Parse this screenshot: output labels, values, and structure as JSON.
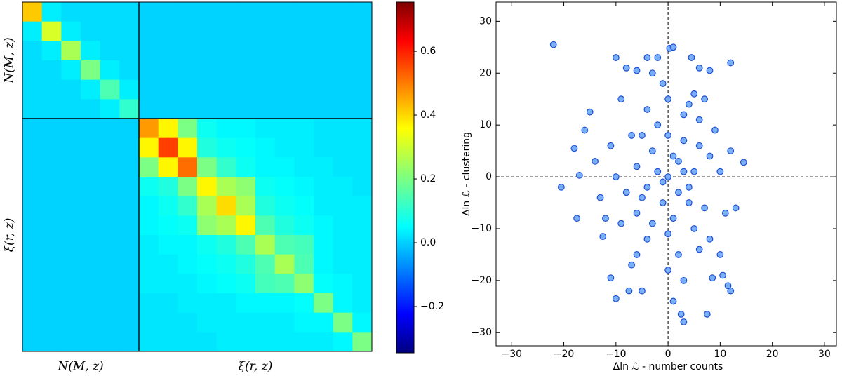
{
  "chart_data": [
    {
      "type": "heatmap",
      "colormap": "jet",
      "blocks": [
        {
          "label": "N(M, z)",
          "span": 6
        },
        {
          "label": "ξ(r, z)",
          "span": 12
        }
      ],
      "matrix": [
        [
          0.4,
          0.05,
          0.03,
          0.03,
          0.03,
          0.03,
          0.02,
          0.02,
          0.02,
          0.02,
          0.02,
          0.02,
          0.02,
          0.02,
          0.02,
          0.02,
          0.02,
          0.02
        ],
        [
          0.05,
          0.3,
          0.05,
          0.03,
          0.03,
          0.03,
          0.02,
          0.02,
          0.02,
          0.02,
          0.02,
          0.02,
          0.02,
          0.02,
          0.02,
          0.02,
          0.02,
          0.02
        ],
        [
          0.03,
          0.05,
          0.25,
          0.05,
          0.03,
          0.03,
          0.02,
          0.02,
          0.02,
          0.02,
          0.02,
          0.02,
          0.02,
          0.02,
          0.02,
          0.02,
          0.02,
          0.02
        ],
        [
          0.03,
          0.03,
          0.05,
          0.2,
          0.05,
          0.03,
          0.02,
          0.02,
          0.02,
          0.02,
          0.02,
          0.02,
          0.02,
          0.02,
          0.02,
          0.02,
          0.02,
          0.02
        ],
        [
          0.03,
          0.03,
          0.03,
          0.05,
          0.15,
          0.05,
          0.02,
          0.02,
          0.02,
          0.02,
          0.02,
          0.02,
          0.02,
          0.02,
          0.02,
          0.02,
          0.02,
          0.02
        ],
        [
          0.03,
          0.03,
          0.03,
          0.03,
          0.05,
          0.12,
          0.02,
          0.02,
          0.02,
          0.02,
          0.02,
          0.02,
          0.02,
          0.02,
          0.02,
          0.02,
          0.02,
          0.02
        ],
        [
          0.02,
          0.02,
          0.02,
          0.02,
          0.02,
          0.02,
          0.45,
          0.35,
          0.2,
          0.08,
          0.06,
          0.06,
          0.05,
          0.05,
          0.05,
          0.04,
          0.04,
          0.04
        ],
        [
          0.02,
          0.02,
          0.02,
          0.02,
          0.02,
          0.02,
          0.35,
          0.55,
          0.35,
          0.1,
          0.08,
          0.07,
          0.06,
          0.05,
          0.05,
          0.04,
          0.04,
          0.04
        ],
        [
          0.02,
          0.02,
          0.02,
          0.02,
          0.02,
          0.02,
          0.2,
          0.35,
          0.5,
          0.2,
          0.12,
          0.08,
          0.06,
          0.06,
          0.05,
          0.05,
          0.04,
          0.04
        ],
        [
          0.02,
          0.02,
          0.02,
          0.02,
          0.02,
          0.02,
          0.08,
          0.1,
          0.2,
          0.35,
          0.25,
          0.22,
          0.08,
          0.07,
          0.06,
          0.05,
          0.05,
          0.04
        ],
        [
          0.02,
          0.02,
          0.02,
          0.02,
          0.02,
          0.02,
          0.06,
          0.08,
          0.12,
          0.25,
          0.38,
          0.25,
          0.1,
          0.08,
          0.07,
          0.05,
          0.05,
          0.05
        ],
        [
          0.02,
          0.02,
          0.02,
          0.02,
          0.02,
          0.02,
          0.06,
          0.07,
          0.08,
          0.22,
          0.25,
          0.35,
          0.15,
          0.1,
          0.08,
          0.06,
          0.05,
          0.05
        ],
        [
          0.02,
          0.02,
          0.02,
          0.02,
          0.02,
          0.02,
          0.05,
          0.06,
          0.06,
          0.08,
          0.1,
          0.15,
          0.25,
          0.15,
          0.14,
          0.06,
          0.05,
          0.05
        ],
        [
          0.02,
          0.02,
          0.02,
          0.02,
          0.02,
          0.02,
          0.05,
          0.05,
          0.06,
          0.07,
          0.08,
          0.1,
          0.15,
          0.25,
          0.15,
          0.06,
          0.05,
          0.05
        ],
        [
          0.02,
          0.02,
          0.02,
          0.02,
          0.02,
          0.02,
          0.05,
          0.05,
          0.05,
          0.06,
          0.07,
          0.08,
          0.14,
          0.15,
          0.22,
          0.07,
          0.06,
          0.05
        ],
        [
          0.02,
          0.02,
          0.02,
          0.02,
          0.02,
          0.02,
          0.04,
          0.04,
          0.05,
          0.05,
          0.05,
          0.06,
          0.06,
          0.06,
          0.07,
          0.2,
          0.06,
          0.05
        ],
        [
          0.02,
          0.02,
          0.02,
          0.02,
          0.02,
          0.02,
          0.04,
          0.04,
          0.04,
          0.05,
          0.05,
          0.05,
          0.05,
          0.05,
          0.06,
          0.06,
          0.2,
          0.06
        ],
        [
          0.02,
          0.02,
          0.02,
          0.02,
          0.02,
          0.02,
          0.04,
          0.04,
          0.04,
          0.04,
          0.05,
          0.05,
          0.05,
          0.05,
          0.05,
          0.05,
          0.06,
          0.2
        ]
      ],
      "clim": [
        -0.345,
        0.754
      ],
      "cticks": [
        {
          "value": -0.2,
          "label": "−0.2"
        },
        {
          "value": 0,
          "label": "0.0"
        },
        0.2,
        0.4,
        0.6
      ]
    },
    {
      "type": "scatter",
      "color": "#7aaef5",
      "edgecolor": "#1c4fd8",
      "xlabel": "Δln ℒ - number counts",
      "ylabel": "Δln ℒ - clustering",
      "xlim": [
        -33,
        32.3
      ],
      "ylim": [
        -32.6,
        33.7
      ],
      "xticks": [
        {
          "value": -30,
          "label": "−30"
        },
        {
          "value": -20,
          "label": "−20"
        },
        {
          "value": -10,
          "label": "−10"
        },
        0,
        10,
        20,
        30
      ],
      "yticks": [
        {
          "value": -30,
          "label": "−30"
        },
        {
          "value": -20,
          "label": "−20"
        },
        {
          "value": -10,
          "label": "−10"
        },
        0,
        10,
        20,
        30
      ],
      "hline": 0,
      "vline": 0,
      "x": [
        -22,
        0.3,
        -20.5,
        -18,
        -17,
        -17.5,
        14.5,
        12,
        7.5,
        2.5,
        3,
        12,
        11.5,
        -10,
        -7.5,
        -5,
        -4,
        -10,
        -8,
        -6,
        4.5,
        1,
        6,
        -2,
        8,
        -15,
        -16,
        -12.5,
        10.5,
        8.5,
        -11,
        0,
        2,
        -3,
        4,
        -5,
        1,
        -2,
        3,
        -6,
        6,
        5,
        -4,
        0,
        8,
        -8,
        2,
        -1,
        7,
        -7,
        3,
        -3,
        1,
        10,
        -10,
        9,
        -9,
        4,
        -4,
        0,
        6,
        -6,
        11,
        -11,
        2,
        -2,
        5,
        -5,
        0,
        0,
        12,
        -13,
        7,
        -7,
        3,
        -1,
        13,
        -12,
        8,
        -9,
        5,
        1,
        -3,
        10,
        -14,
        4,
        -1,
        3,
        -4,
        6,
        -6
      ],
      "y": [
        25.5,
        24.8,
        -2,
        5.5,
        0.3,
        -8,
        2.8,
        22,
        -26.5,
        -26.5,
        -28,
        -22,
        -21,
        -23.5,
        -22,
        -22,
        23,
        23,
        21,
        20.5,
        23,
        25,
        21,
        23,
        20.5,
        12.5,
        9,
        -11.5,
        -19,
        -19.5,
        -19.5,
        0,
        3,
        5,
        -2,
        -4,
        -8,
        10,
        12,
        2,
        6,
        -10,
        -12,
        15,
        4,
        -3,
        -15,
        -5,
        -6,
        8,
        7,
        -9,
        4,
        1,
        0,
        9,
        -9,
        14,
        13,
        -18,
        -14,
        -15,
        -7,
        6,
        -3,
        1,
        1,
        8,
        8,
        -11,
        5,
        -4,
        15,
        -17,
        -20,
        18,
        -6,
        -8,
        -12,
        15,
        16,
        -24,
        20,
        -15,
        3,
        -5,
        -1,
        1,
        -2,
        11,
        -7
      ]
    }
  ]
}
